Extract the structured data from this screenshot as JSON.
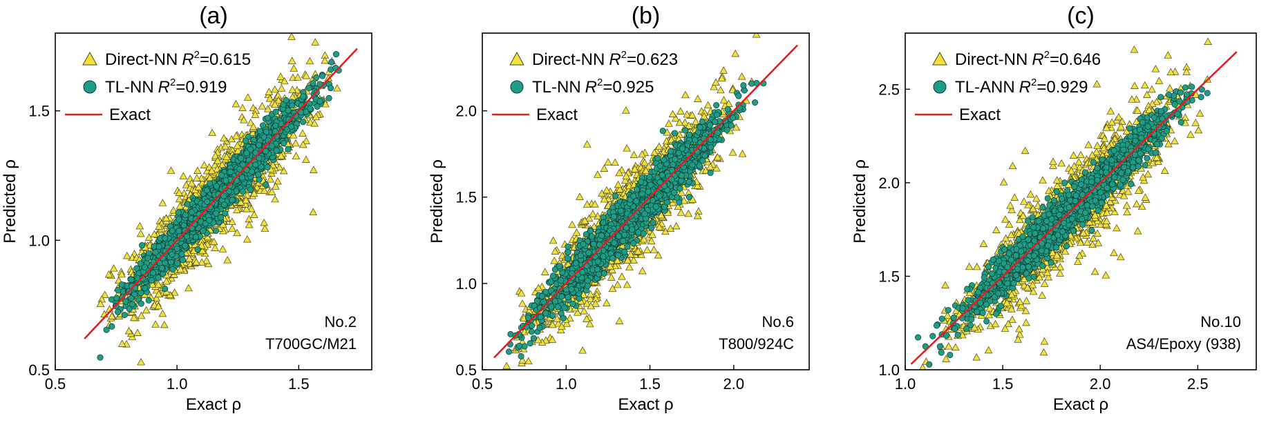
{
  "colors": {
    "direct_fill": "#f2e23a",
    "direct_edge": "#4a4420",
    "tl_fill": "#1f9c85",
    "tl_edge": "#0e3b33",
    "exact_line": "#e41d1d"
  },
  "chart_data": [
    {
      "type": "scatter",
      "panel": "(a)",
      "xlabel": "Exact ρ",
      "ylabel": "Predicted ρ",
      "xlim": [
        0.5,
        1.8
      ],
      "ylim": [
        0.5,
        1.8
      ],
      "xticks": [
        "0.5",
        "1.0",
        "1.5"
      ],
      "yticks": [
        "0.5",
        "1.0",
        "1.5"
      ],
      "xtick_values": [
        0.5,
        1.0,
        1.5
      ],
      "ytick_values": [
        0.5,
        1.0,
        1.5
      ],
      "legend": [
        {
          "marker": "triangle",
          "label": "Direct-NN",
          "r2_label": "R",
          "r2_exp": "2",
          "r2_value": "=0.615"
        },
        {
          "marker": "circle",
          "label": "TL-NN",
          "r2_label": "R",
          "r2_exp": "2",
          "r2_value": "=0.919"
        },
        {
          "marker": "line",
          "label": "Exact"
        }
      ],
      "legend_position": "top-left",
      "annotation_lines": [
        "No.2",
        "T700GC/M21"
      ],
      "exact_line": [
        [
          0.62,
          0.62
        ],
        [
          1.74,
          1.74
        ]
      ],
      "series": [
        {
          "name": "Direct-NN",
          "r2": 0.615,
          "xrange": [
            0.62,
            1.7
          ],
          "spread": 0.08,
          "n": 1400
        },
        {
          "name": "TL-NN",
          "r2": 0.919,
          "xrange": [
            0.62,
            1.72
          ],
          "spread": 0.04,
          "n": 1500
        }
      ]
    },
    {
      "type": "scatter",
      "panel": "(b)",
      "xlabel": "Exact ρ",
      "ylabel": "Predicted ρ",
      "xlim": [
        0.5,
        2.45
      ],
      "ylim": [
        0.5,
        2.45
      ],
      "xticks": [
        "0.5",
        "1.0",
        "1.5",
        "2.0"
      ],
      "yticks": [
        "0.5",
        "1.0",
        "1.5",
        "2.0"
      ],
      "xtick_values": [
        0.5,
        1.0,
        1.5,
        2.0
      ],
      "ytick_values": [
        0.5,
        1.0,
        1.5,
        2.0
      ],
      "legend": [
        {
          "marker": "triangle",
          "label": "Direct-NN",
          "r2_label": "R",
          "r2_exp": "2",
          "r2_value": "=0.623"
        },
        {
          "marker": "circle",
          "label": "TL-NN",
          "r2_label": "R",
          "r2_exp": "2",
          "r2_value": "=0.925"
        },
        {
          "marker": "line",
          "label": "Exact"
        }
      ],
      "legend_position": "top-left",
      "annotation_lines": [
        "No.6",
        "T800/924C"
      ],
      "exact_line": [
        [
          0.57,
          0.57
        ],
        [
          2.38,
          2.38
        ]
      ],
      "series": [
        {
          "name": "Direct-NN",
          "r2": 0.623,
          "xrange": [
            0.55,
            2.22
          ],
          "spread": 0.12,
          "n": 1400
        },
        {
          "name": "TL-NN",
          "r2": 0.925,
          "xrange": [
            0.57,
            2.2
          ],
          "spread": 0.07,
          "n": 1500
        }
      ]
    },
    {
      "type": "scatter",
      "panel": "(c)",
      "xlabel": "Exact ρ",
      "ylabel": "Predicted ρ",
      "xlim": [
        1.0,
        2.8
      ],
      "ylim": [
        1.0,
        2.8
      ],
      "xticks": [
        "1.0",
        "1.5",
        "2.0",
        "2.5"
      ],
      "yticks": [
        "1.0",
        "1.5",
        "2.0",
        "2.5"
      ],
      "xtick_values": [
        1.0,
        1.5,
        2.0,
        2.5
      ],
      "ytick_values": [
        1.0,
        1.5,
        2.0,
        2.5
      ],
      "legend": [
        {
          "marker": "triangle",
          "label": "Direct-NN",
          "r2_label": "R",
          "r2_exp": "2",
          "r2_value": "=0.646"
        },
        {
          "marker": "circle",
          "label": "TL-ANN",
          "r2_label": "R",
          "r2_exp": "2",
          "r2_value": "=0.929"
        },
        {
          "marker": "line",
          "label": "Exact"
        }
      ],
      "legend_position": "top-left",
      "annotation_lines": [
        "No.10",
        "AS4/Epoxy (938)"
      ],
      "exact_line": [
        [
          1.03,
          1.03
        ],
        [
          2.7,
          2.7
        ]
      ],
      "series": [
        {
          "name": "Direct-NN",
          "r2": 0.646,
          "xrange": [
            1.05,
            2.62
          ],
          "spread": 0.12,
          "n": 1400
        },
        {
          "name": "TL-ANN",
          "r2": 0.929,
          "xrange": [
            1.05,
            2.62
          ],
          "spread": 0.06,
          "n": 1500
        }
      ]
    }
  ]
}
